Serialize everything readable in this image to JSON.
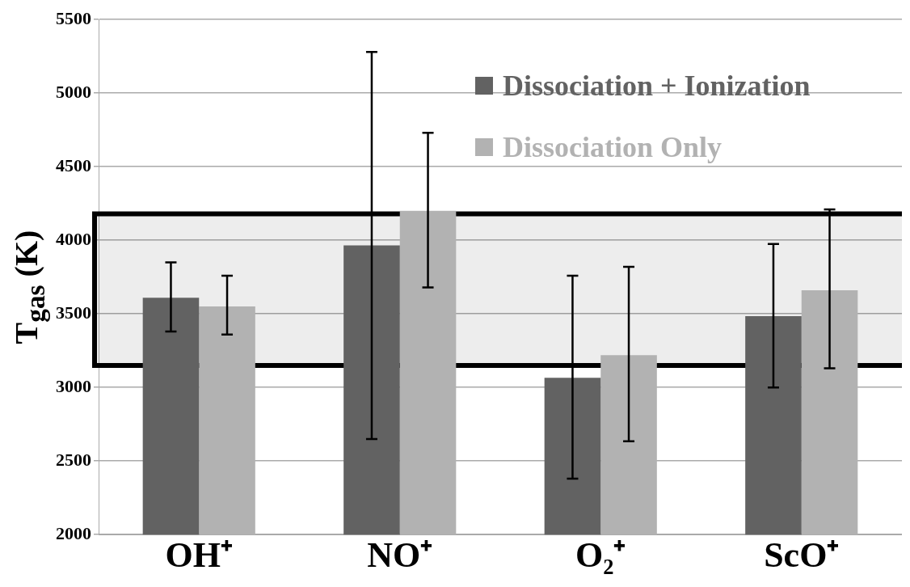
{
  "chart_data": {
    "type": "bar",
    "ylabel": "T$_{gas}$ (K)",
    "categories": [
      "OH⁺",
      "NO⁺",
      "O₂⁺",
      "ScO⁺"
    ],
    "series": [
      {
        "name": "Dissociation + Ionization",
        "color": "#626262",
        "values": [
          3610,
          3965,
          3065,
          3485
        ],
        "errors": [
          [
            3380,
            3850
          ],
          [
            2650,
            5280
          ],
          [
            2380,
            3760
          ],
          [
            3000,
            3975
          ]
        ]
      },
      {
        "name": "Dissociation Only",
        "color": "#b2b2b2",
        "values": [
          3550,
          4200,
          3220,
          3660
        ],
        "errors": [
          [
            3360,
            3760
          ],
          [
            3680,
            4730
          ],
          [
            2635,
            3820
          ],
          [
            3130,
            4210
          ]
        ]
      }
    ],
    "ylim": [
      2000,
      5500
    ],
    "yticks": [
      2000,
      2500,
      3000,
      3500,
      4000,
      4500,
      5000,
      5500
    ],
    "grid": "y",
    "legend": "top right",
    "bands": [
      {
        "axis": "y",
        "from": 3150,
        "to": 4180,
        "color": "#000000"
      }
    ]
  }
}
